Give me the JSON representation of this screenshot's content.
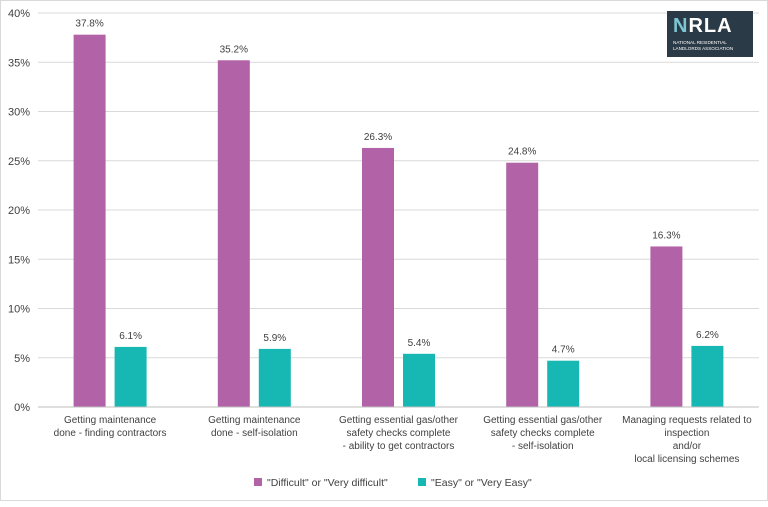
{
  "logo": {
    "brand": "NRLA",
    "subtitle": "NATIONAL RESIDENTIAL LANDLORDS ASSOCIATION"
  },
  "chart_data": {
    "type": "bar",
    "title": "",
    "xlabel": "",
    "ylabel": "",
    "ylim": [
      0,
      40
    ],
    "yticks": [
      "0%",
      "5%",
      "10%",
      "15%",
      "20%",
      "25%",
      "30%",
      "35%",
      "40%"
    ],
    "grid": true,
    "legend_position": "bottom",
    "categories": [
      [
        "Getting maintenance",
        "done - finding contractors"
      ],
      [
        "Getting maintenance",
        "done - self-isolation"
      ],
      [
        "Getting essential gas/other",
        "safety checks complete",
        "- ability to get contractors"
      ],
      [
        "Getting essential gas/other",
        "safety checks complete",
        "- self-isolation"
      ],
      [
        "Managing requests related to",
        "inspection",
        "and/or",
        "local licensing schemes"
      ]
    ],
    "series": [
      {
        "name": "\"Difficult\" or \"Very difficult\"",
        "color": "#b263a8",
        "values": [
          37.8,
          35.2,
          26.3,
          24.8,
          16.3
        ],
        "labels": [
          "37.8%",
          "35.2%",
          "26.3%",
          "24.8%",
          "16.3%"
        ]
      },
      {
        "name": "\"Easy\" or \"Very Easy\"",
        "color": "#17b7b3",
        "values": [
          6.1,
          5.9,
          5.4,
          4.7,
          6.2
        ],
        "labels": [
          "6.1%",
          "5.9%",
          "5.4%",
          "4.7%",
          "6.2%"
        ]
      }
    ]
  }
}
